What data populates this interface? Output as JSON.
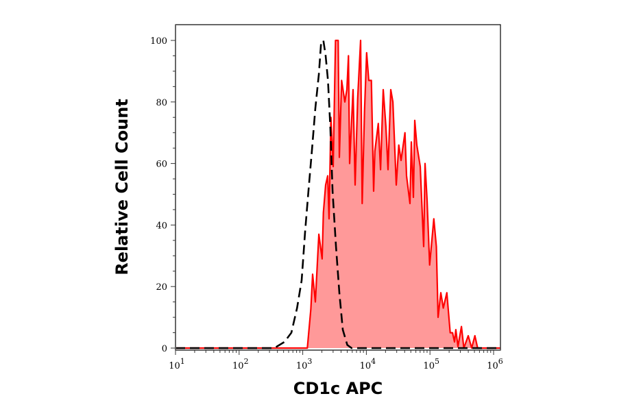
{
  "chart_data": {
    "type": "area",
    "title": "",
    "xlabel": "CD1c APC",
    "ylabel": "Relative Cell Count",
    "xscale": "log",
    "xlim": [
      10,
      1260000
    ],
    "ylim": [
      0,
      100
    ],
    "x_ticks": [
      {
        "base": "10",
        "exp": "1",
        "value": 10
      },
      {
        "base": "10",
        "exp": "2",
        "value": 100
      },
      {
        "base": "10",
        "exp": "3",
        "value": 1000
      },
      {
        "base": "10",
        "exp": "4",
        "value": 10000
      },
      {
        "base": "10",
        "exp": "5",
        "value": 100000
      },
      {
        "base": "10",
        "exp": "6",
        "value": 1000000
      }
    ],
    "y_ticks": [
      "0",
      "20",
      "40",
      "60",
      "80",
      "100"
    ],
    "grid": false,
    "legend": "none",
    "colors": {
      "stained_line": "#ff0000",
      "stained_fill": "#ff9999",
      "control_line": "#000000"
    },
    "series": [
      {
        "style": "solid-filled",
        "x": [
          10,
          1100,
          1180,
          1340,
          1430,
          1580,
          1790,
          2020,
          2110,
          2290,
          2470,
          2590,
          2770,
          3010,
          3270,
          3610,
          3760,
          4080,
          4590,
          4940,
          5230,
          5460,
          6180,
          6660,
          7300,
          8110,
          8590,
          9350,
          10100,
          10900,
          12000,
          13000,
          13600,
          15400,
          16700,
          18400,
          20300,
          21900,
          24200,
          26100,
          29500,
          32300,
          35100,
          40400,
          42800,
          48400,
          50900,
          54800,
          57700,
          62100,
          70300,
          79600,
          83600,
          90100,
          98800,
          115000,
          126000,
          134000,
          148000,
          162000,
          184000,
          208000,
          226000,
          243000,
          255000,
          275000,
          312000,
          341000,
          399000,
          452000,
          508000,
          561000,
          1260000
        ],
        "y": [
          0,
          0,
          0,
          12.6,
          24,
          15,
          37,
          29,
          44,
          53,
          56,
          42,
          75,
          59,
          100,
          100,
          62,
          87,
          80,
          84,
          95,
          60,
          84,
          53,
          81,
          100,
          47,
          77,
          96,
          87,
          87,
          51,
          64,
          73,
          58,
          84,
          72,
          58,
          84,
          80,
          53,
          66,
          61,
          70,
          56,
          47,
          67,
          49,
          74,
          66,
          59,
          33,
          60,
          48,
          27,
          42,
          33,
          10,
          18,
          13,
          18,
          5,
          5,
          2,
          6,
          0.5,
          7,
          0,
          4,
          0,
          4,
          0,
          0
        ]
      },
      {
        "style": "dashed",
        "x": [
          10,
          357,
          516,
          662,
          814,
          961,
          1090,
          1230,
          1390,
          1580,
          1790,
          1940,
          2110,
          2290,
          2490,
          2710,
          2940,
          3330,
          3760,
          4260,
          5020,
          5870,
          1260000
        ],
        "y": [
          0,
          0,
          2,
          5,
          13,
          22,
          38,
          51,
          64,
          78,
          89,
          99,
          100,
          95,
          87,
          72,
          51,
          33,
          18,
          6,
          1,
          0,
          0
        ]
      }
    ]
  }
}
